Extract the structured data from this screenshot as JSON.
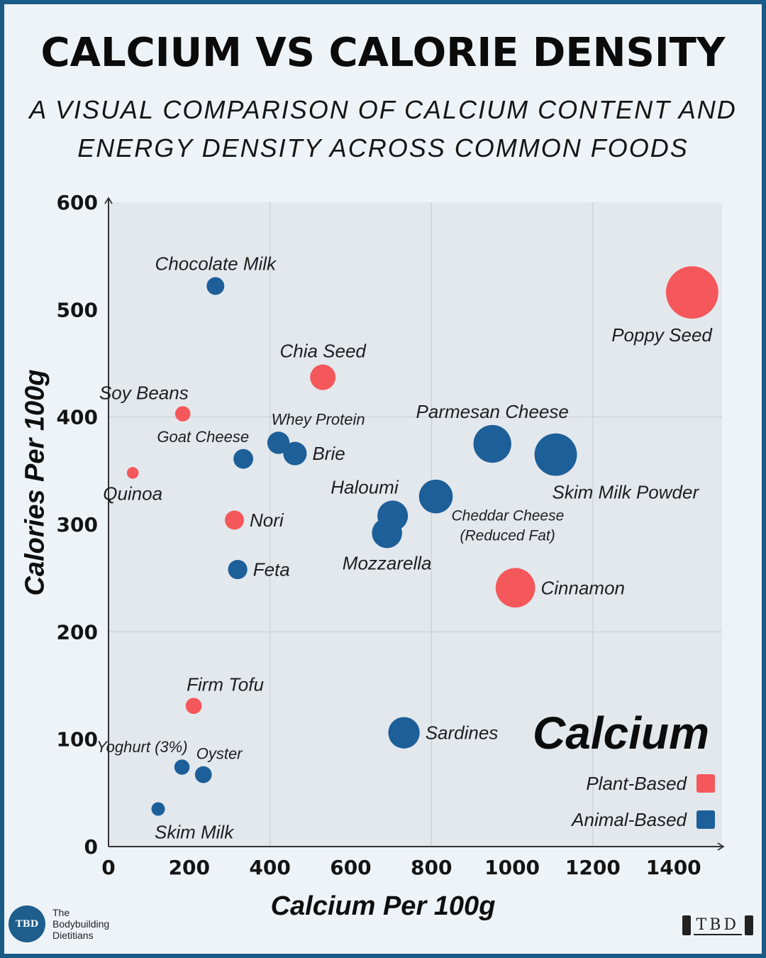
{
  "header": {
    "title": "CALCIUM VS CALORIE DENSITY",
    "subtitle_line1": "A VISUAL COMPARISON OF CALCIUM CONTENT AND",
    "subtitle_line2": "ENERGY DENSITY ACROSS COMMON FOODS"
  },
  "colors": {
    "plant": "#f4585a",
    "animal": "#1d5f99",
    "plot_bg": "#e3e8ed",
    "grid": "#c9cfd6",
    "axis": "#333333"
  },
  "legend": {
    "title": "Calcium",
    "plant_label": "Plant-Based",
    "animal_label": "Animal-Based"
  },
  "branding": {
    "left_badge": "TBD",
    "left_line1": "The",
    "left_line2": "Bodybuilding",
    "left_line3": "Dietitians",
    "right_mark": "TBD"
  },
  "chart_data": {
    "type": "scatter",
    "title": "CALCIUM VS CALORIE DENSITY",
    "xlabel": "Calcium Per 100g",
    "ylabel": "Calories Per 100g",
    "xlim": [
      0,
      1520
    ],
    "ylim": [
      0,
      600
    ],
    "xticks": [
      0,
      200,
      400,
      600,
      800,
      1000,
      1200,
      1400
    ],
    "yticks": [
      0,
      100,
      200,
      300,
      400,
      500,
      600
    ],
    "grid": true,
    "legend_position": "bottom-right",
    "bubble_size_encodes": "calcium",
    "points": [
      {
        "label": "Chocolate Milk",
        "x": 265,
        "y": 522,
        "group": "animal",
        "label_pos": "above"
      },
      {
        "label": "Poppy Seed",
        "x": 1446,
        "y": 516,
        "group": "plant",
        "label_pos": "below-left"
      },
      {
        "label": "Chia Seed",
        "x": 531,
        "y": 437,
        "group": "plant",
        "label_pos": "above"
      },
      {
        "label": "Soy Beans",
        "x": 184,
        "y": 403,
        "group": "plant",
        "label_pos": "above-left"
      },
      {
        "label": "Whey Protein",
        "x": 421,
        "y": 376,
        "group": "animal",
        "label_pos": "above-right"
      },
      {
        "label": "Brie",
        "x": 462,
        "y": 366,
        "group": "animal",
        "label_pos": "right"
      },
      {
        "label": "Goat Cheese",
        "x": 334,
        "y": 361,
        "group": "animal",
        "label_pos": "above-left"
      },
      {
        "label": "Quinoa",
        "x": 60,
        "y": 348,
        "group": "plant",
        "label_pos": "below"
      },
      {
        "label": "Parmesan Cheese",
        "x": 951,
        "y": 375,
        "group": "animal",
        "label_pos": "above"
      },
      {
        "label": "Skim Milk Powder",
        "x": 1108,
        "y": 365,
        "group": "animal",
        "label_pos": "below-right"
      },
      {
        "label": "Haloumi",
        "x": 704,
        "y": 308,
        "group": "animal",
        "label_pos": "above-left"
      },
      {
        "label": "Cheddar Cheese (Reduced Fat)",
        "x": 811,
        "y": 326,
        "group": "animal",
        "label_pos": "below-right"
      },
      {
        "label": "Mozzarella",
        "x": 690,
        "y": 292,
        "group": "animal",
        "label_pos": "below"
      },
      {
        "label": "Nori",
        "x": 312,
        "y": 304,
        "group": "plant",
        "label_pos": "right"
      },
      {
        "label": "Feta",
        "x": 320,
        "y": 258,
        "group": "animal",
        "label_pos": "right"
      },
      {
        "label": "Cinnamon",
        "x": 1008,
        "y": 241,
        "group": "plant",
        "label_pos": "right"
      },
      {
        "label": "Firm Tofu",
        "x": 211,
        "y": 131,
        "group": "plant",
        "label_pos": "above-right"
      },
      {
        "label": "Sardines",
        "x": 732,
        "y": 106,
        "group": "animal",
        "label_pos": "right"
      },
      {
        "label": "Yoghurt (3%)",
        "x": 182,
        "y": 74,
        "group": "animal",
        "label_pos": "above-left"
      },
      {
        "label": "Oyster",
        "x": 235,
        "y": 67,
        "group": "animal",
        "label_pos": "above-right"
      },
      {
        "label": "Skim Milk",
        "x": 123,
        "y": 35,
        "group": "animal",
        "label_pos": "below-right"
      }
    ]
  }
}
